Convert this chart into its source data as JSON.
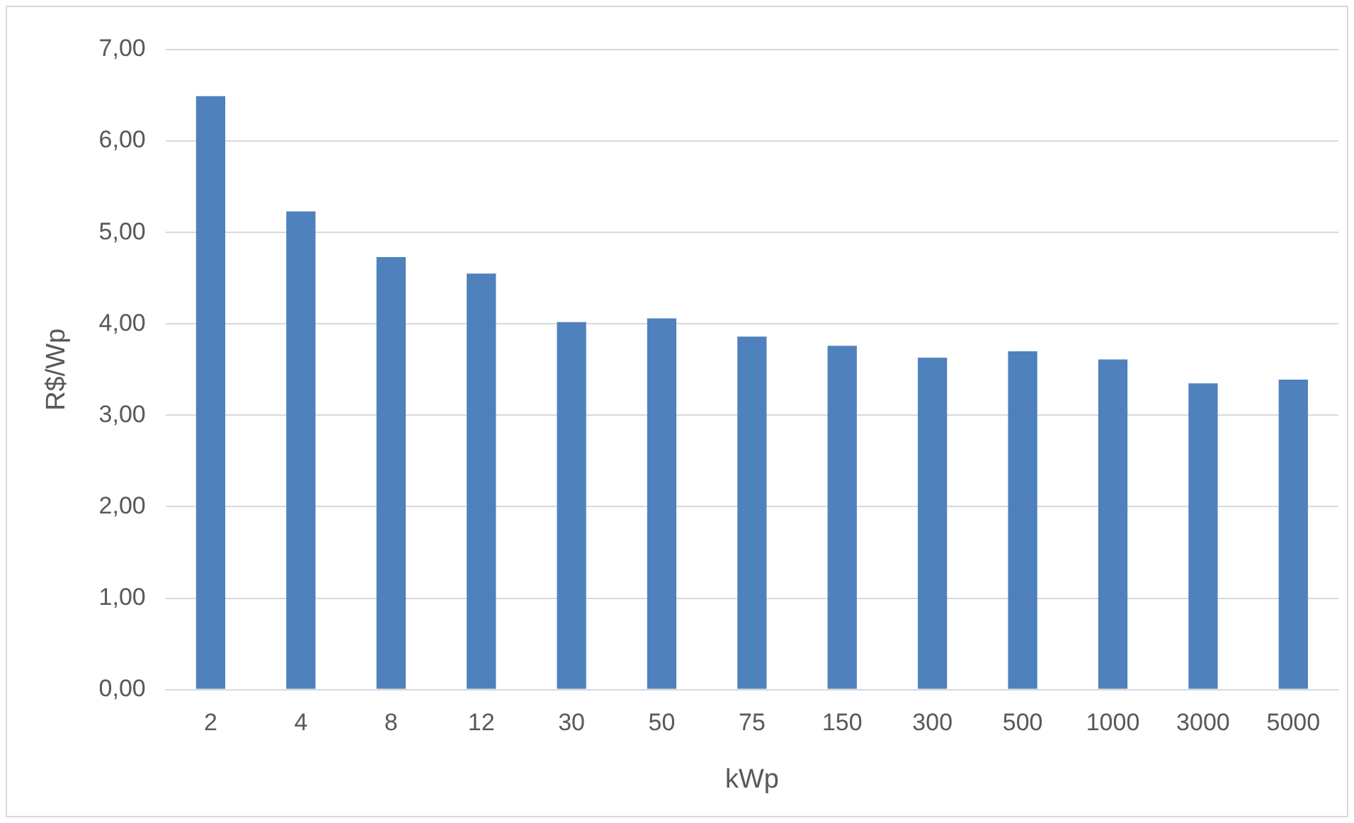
{
  "chart_data": {
    "type": "bar",
    "xlabel": "kWp",
    "ylabel": "R$/Wp",
    "categories": [
      "2",
      "4",
      "8",
      "12",
      "30",
      "50",
      "75",
      "150",
      "300",
      "500",
      "1000",
      "3000",
      "5000"
    ],
    "values": [
      6.49,
      5.23,
      4.73,
      4.55,
      4.02,
      4.06,
      3.86,
      3.76,
      3.63,
      3.7,
      3.61,
      3.35,
      3.39
    ],
    "color": "#4f81bd",
    "ylim": [
      0,
      7
    ],
    "yticks": [
      {
        "value": 0,
        "label": "0,00"
      },
      {
        "value": 1,
        "label": "1,00"
      },
      {
        "value": 2,
        "label": "2,00"
      },
      {
        "value": 3,
        "label": "3,00"
      },
      {
        "value": 4,
        "label": "4,00"
      },
      {
        "value": 5,
        "label": "5,00"
      },
      {
        "value": 6,
        "label": "6,00"
      },
      {
        "value": 7,
        "label": "7,00"
      }
    ],
    "grid": "y",
    "legend": false
  }
}
